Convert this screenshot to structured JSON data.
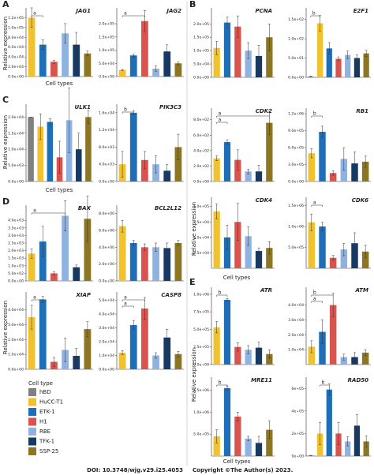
{
  "chart_data": [
    {
      "type": "bar",
      "title": "JAG1",
      "values": [
        null,
        120000,
        65000,
        30000,
        88000,
        65000,
        47000
      ],
      "errors": [
        null,
        20000,
        10000,
        3000,
        20000,
        25000,
        5000
      ],
      "ylim": [
        0,
        140000
      ],
      "yticks": [
        {
          "value": 0,
          "label": "0.0e+00"
        },
        {
          "value": 20000,
          "label": "2.0e+04"
        },
        {
          "value": 40000,
          "label": "4.0e+04"
        },
        {
          "value": 60000,
          "label": "6.0e+04"
        },
        {
          "value": 80000,
          "label": "8.0e+04"
        },
        {
          "value": 100000,
          "label": "1.0e+05"
        },
        {
          "value": 120000,
          "label": "1.2e+05"
        }
      ],
      "brackets": [
        {
          "label": "a",
          "between": [
            1,
            2
          ]
        }
      ]
    },
    {
      "type": "bar",
      "title": "JAG2",
      "values": [
        null,
        25000,
        80000,
        210000,
        30000,
        95000,
        50000
      ],
      "errors": [
        null,
        2000,
        5000,
        40000,
        10000,
        25000,
        5000
      ],
      "ylim": [
        0,
        260000
      ],
      "yticks": [
        {
          "value": 0,
          "label": "0.0e+00"
        },
        {
          "value": 50000,
          "label": "5.0e+04"
        },
        {
          "value": 100000,
          "label": "1.0e+05"
        },
        {
          "value": 150000,
          "label": "1.5e+05"
        },
        {
          "value": 200000,
          "label": "2.0e+05"
        }
      ],
      "brackets": [
        {
          "label": "a",
          "between": [
            1,
            3
          ]
        }
      ]
    },
    {
      "type": "bar",
      "title": "PCNA",
      "values": [
        null,
        110000,
        205000,
        190000,
        100000,
        80000,
        150000
      ],
      "errors": [
        null,
        25000,
        20000,
        40000,
        30000,
        40000,
        50000
      ],
      "ylim": [
        0,
        260000
      ],
      "yticks": [
        {
          "value": 0,
          "label": "0.0e+00"
        },
        {
          "value": 50000,
          "label": "5.0e+04"
        },
        {
          "value": 100000,
          "label": "1.0e+05"
        },
        {
          "value": 150000,
          "label": "1.5e+05"
        },
        {
          "value": 200000,
          "label": "2.0e+05"
        }
      ],
      "brackets": []
    },
    {
      "type": "bar",
      "title": "E2F1",
      "values": [
        2,
        140,
        75,
        48,
        58,
        50,
        62
      ],
      "errors": [
        1,
        20,
        15,
        5,
        10,
        8,
        8
      ],
      "ylim": [
        0,
        180
      ],
      "yticks": [
        {
          "value": 0,
          "label": "0.0e+00"
        },
        {
          "value": 50,
          "label": "5.0e+01"
        },
        {
          "value": 100,
          "label": "1.0e+02"
        },
        {
          "value": 150,
          "label": "1.5e+02"
        }
      ],
      "brackets": [
        {
          "label": "b",
          "between": [
            0,
            1
          ]
        }
      ]
    },
    {
      "type": "bar",
      "title": "ULK1",
      "values": [
        20000,
        17000,
        18500,
        7500,
        19000,
        10000,
        20000
      ],
      "errors": [
        0,
        4000,
        1000,
        5000,
        10000,
        5000,
        2000
      ],
      "ylim": [
        0,
        24000
      ],
      "yticks": [
        {
          "value": 0,
          "label": "0.0e+00"
        },
        {
          "value": 5000,
          "label": "5.0e+03"
        },
        {
          "value": 10000,
          "label": "1.0e+04"
        },
        {
          "value": 15000,
          "label": "1.5e+04"
        },
        {
          "value": 20000,
          "label": "2.0e+04"
        }
      ],
      "brackets": []
    },
    {
      "type": "bar",
      "title": "PIK3C3",
      "values": [
        null,
        4000,
        16000,
        5000,
        4000,
        2500,
        8000
      ],
      "errors": [
        null,
        3000,
        500,
        2000,
        2000,
        1500,
        3000
      ],
      "ylim": [
        0,
        18000
      ],
      "yticks": [
        {
          "value": 0,
          "label": "0.0e+00"
        },
        {
          "value": 4000,
          "label": "4.0e+03"
        },
        {
          "value": 8000,
          "label": "8.0e+03"
        },
        {
          "value": 12000,
          "label": "1.2e+04"
        },
        {
          "value": 16000,
          "label": "1.6e+04"
        }
      ],
      "brackets": [
        {
          "label": "b",
          "between": [
            1,
            2
          ]
        }
      ]
    },
    {
      "type": "bar",
      "title": "CDK2",
      "values": [
        null,
        300,
        510,
        280,
        130,
        130,
        760
      ],
      "errors": [
        null,
        30,
        30,
        130,
        30,
        80,
        150
      ],
      "ylim": [
        0,
        950
      ],
      "yticks": [
        {
          "value": 0,
          "label": "0.0e+00"
        },
        {
          "value": 200,
          "label": "2.0e+02"
        },
        {
          "value": 400,
          "label": "4.0e+02"
        },
        {
          "value": 600,
          "label": "6.0e+02"
        },
        {
          "value": 800,
          "label": "8.0e+02"
        }
      ],
      "brackets": [
        {
          "label": "a",
          "between": [
            1,
            2
          ]
        },
        {
          "label": "a",
          "between": [
            1,
            6
          ]
        }
      ]
    },
    {
      "type": "bar",
      "title": "RB1",
      "values": [
        null,
        500000,
        880000,
        150000,
        400000,
        320000,
        350000
      ],
      "errors": [
        null,
        80000,
        100000,
        40000,
        200000,
        200000,
        100000
      ],
      "ylim": [
        0,
        1300000
      ],
      "yticks": [
        {
          "value": 0,
          "label": "0.0e+00"
        },
        {
          "value": 300000,
          "label": "3.0e+05"
        },
        {
          "value": 600000,
          "label": "6.0e+05"
        },
        {
          "value": 900000,
          "label": "9.0e+05"
        },
        {
          "value": 1200000,
          "label": "1.2e+06"
        }
      ],
      "brackets": [
        {
          "label": "b",
          "between": [
            1,
            2
          ]
        }
      ]
    },
    {
      "type": "bar",
      "title": "CDK4",
      "values": [
        null,
        92000,
        50000,
        75000,
        52000,
        28000,
        33000
      ],
      "errors": [
        null,
        12000,
        20000,
        30000,
        15000,
        5000,
        10000
      ],
      "ylim": [
        0,
        115000
      ],
      "yticks": [
        {
          "value": 25000,
          "label": "2.5e+04"
        },
        {
          "value": 50000,
          "label": "5.0e+04"
        },
        {
          "value": 75000,
          "label": "7.5e+04"
        },
        {
          "value": 100000,
          "label": "1.0e+05"
        }
      ],
      "brackets": []
    },
    {
      "type": "bar",
      "title": "CDK6",
      "values": [
        null,
        1100000,
        1000000,
        250000,
        450000,
        600000,
        400000
      ],
      "errors": [
        null,
        200000,
        100000,
        60000,
        150000,
        250000,
        150000
      ],
      "ylim": [
        0,
        1700000
      ],
      "yticks": [
        {
          "value": 500000,
          "label": "5.0e+05"
        },
        {
          "value": 1000000,
          "label": "1.0e+06"
        },
        {
          "value": 1500000,
          "label": "1.5e+06"
        }
      ],
      "brackets": [
        {
          "label": "a",
          "between": [
            1,
            2
          ]
        }
      ]
    },
    {
      "type": "bar",
      "title": "BAX",
      "values": [
        null,
        1800,
        2600,
        500,
        4300,
        900,
        4100
      ],
      "errors": [
        null,
        300,
        1000,
        100,
        1000,
        150,
        1500
      ],
      "ylim": [
        0,
        5000
      ],
      "yticks": [
        {
          "value": 0,
          "label": "0.0e+00"
        },
        {
          "value": 500,
          "label": "5.0e+02"
        },
        {
          "value": 1000,
          "label": "1.0e+03"
        },
        {
          "value": 1500,
          "label": "1.5e+03"
        },
        {
          "value": 2000,
          "label": "2.0e+03"
        },
        {
          "value": 2500,
          "label": "2.5e+03"
        },
        {
          "value": 3000,
          "label": "3.0e+03"
        },
        {
          "value": 3500,
          "label": "3.5e+03"
        },
        {
          "value": 4000,
          "label": "4.0e+03"
        }
      ],
      "brackets": [
        {
          "label": "a",
          "between": [
            1,
            4
          ]
        }
      ]
    },
    {
      "type": "bar",
      "title": "BCL2L12",
      "values": [
        null,
        6.5,
        4.5,
        4,
        4,
        3.9,
        4.5
      ],
      "errors": [
        null,
        0.7,
        0.3,
        0.4,
        0.5,
        0.6,
        0.3
      ],
      "ylim": [
        0,
        9
      ],
      "yticks": [
        {
          "value": 0,
          "label": "0.0e+00"
        },
        {
          "value": 2,
          "label": "2.0e+00"
        },
        {
          "value": 4,
          "label": "4.0e+00"
        },
        {
          "value": 6,
          "label": "6.0e+00"
        },
        {
          "value": 8,
          "label": "8.0e+00"
        }
      ],
      "brackets": []
    },
    {
      "type": "bar",
      "title": "XIAP",
      "values": [
        null,
        35000,
        47000,
        5000,
        13000,
        9000,
        27000
      ],
      "errors": [
        null,
        8000,
        2000,
        3000,
        8000,
        5000,
        5000
      ],
      "ylim": [
        0,
        52000
      ],
      "yticks": [
        {
          "value": 0,
          "label": "0.0e+00"
        },
        {
          "value": 10000,
          "label": "1.0e+04"
        },
        {
          "value": 20000,
          "label": "2.0e+04"
        },
        {
          "value": 30000,
          "label": "3.0e+04"
        },
        {
          "value": 40000,
          "label": "4.0e+04"
        }
      ],
      "brackets": [
        {
          "label": "a",
          "between": [
            1,
            2
          ]
        }
      ]
    },
    {
      "type": "bar",
      "title": "CASP8",
      "values": [
        null,
        12000,
        32000,
        44000,
        10000,
        23000,
        11000
      ],
      "errors": [
        null,
        1500,
        3000,
        8000,
        2000,
        6000,
        2000
      ],
      "ylim": [
        0,
        56000
      ],
      "yticks": [
        {
          "value": 0,
          "label": "0.0e+00"
        },
        {
          "value": 10000,
          "label": "1.0e+04"
        },
        {
          "value": 20000,
          "label": "2.0e+04"
        },
        {
          "value": 30000,
          "label": "3.0e+04"
        },
        {
          "value": 40000,
          "label": "4.0e+04"
        },
        {
          "value": 50000,
          "label": "5.0e+04"
        }
      ],
      "brackets": [
        {
          "label": "a",
          "between": [
            1,
            2
          ]
        },
        {
          "label": "a",
          "between": [
            1,
            3
          ]
        }
      ]
    },
    {
      "type": "bar",
      "title": "ATR",
      "values": [
        null,
        530000,
        920000,
        250000,
        210000,
        240000,
        150000
      ],
      "errors": [
        null,
        80000,
        20000,
        60000,
        60000,
        80000,
        60000
      ],
      "ylim": [
        0,
        1100000
      ],
      "yticks": [
        {
          "value": 0,
          "label": "0.0e+00"
        },
        {
          "value": 250000,
          "label": "2.5e+05"
        },
        {
          "value": 500000,
          "label": "5.0e+05"
        },
        {
          "value": 750000,
          "label": "7.5e+05"
        },
        {
          "value": 1000000,
          "label": "1.0e+06"
        }
      ],
      "brackets": [
        {
          "label": "b",
          "between": [
            1,
            2
          ]
        }
      ]
    },
    {
      "type": "bar",
      "title": "ATM",
      "values": [
        null,
        12000,
        22000,
        40000,
        5000,
        5000,
        8000
      ],
      "errors": [
        null,
        4000,
        8000,
        8000,
        2000,
        3000,
        2000
      ],
      "ylim": [
        0,
        52000
      ],
      "yticks": [
        {
          "value": 10000,
          "label": "1.0e+04"
        },
        {
          "value": 20000,
          "label": "2.0e+04"
        },
        {
          "value": 30000,
          "label": "3.0e+04"
        },
        {
          "value": 40000,
          "label": "4.0e+04"
        }
      ],
      "brackets": [
        {
          "label": "a",
          "between": [
            1,
            2
          ]
        },
        {
          "label": "b",
          "between": [
            1,
            3
          ]
        }
      ]
    },
    {
      "type": "bar",
      "title": "MRE11",
      "values": [
        null,
        450000,
        1550000,
        900000,
        400000,
        300000,
        600000
      ],
      "errors": [
        null,
        150000,
        50000,
        100000,
        50000,
        150000,
        200000
      ],
      "ylim": [
        0,
        1800000
      ],
      "yticks": [
        {
          "value": 500000,
          "label": "5.0e+05"
        },
        {
          "value": 1000000,
          "label": "1.0e+06"
        },
        {
          "value": 1500000,
          "label": "1.5e+06"
        }
      ],
      "brackets": [
        {
          "label": "b",
          "between": [
            1,
            2
          ]
        }
      ]
    },
    {
      "type": "bar",
      "title": "RAD50",
      "values": [
        5000,
        200000,
        590000,
        200000,
        130000,
        270000,
        130000
      ],
      "errors": [
        2000,
        100000,
        50000,
        100000,
        40000,
        100000,
        50000
      ],
      "ylim": [
        0,
        700000
      ],
      "yticks": [
        {
          "value": 0,
          "label": "0e+00"
        },
        {
          "value": 200000,
          "label": "2e+05"
        },
        {
          "value": 400000,
          "label": "4e+05"
        },
        {
          "value": 600000,
          "label": "6e+05"
        }
      ],
      "brackets": [
        {
          "label": "b",
          "between": [
            1,
            2
          ]
        }
      ]
    }
  ],
  "sections": [
    {
      "label": "A",
      "x_label": "Cell types",
      "y_label": "Relative expression"
    },
    {
      "label": "C",
      "x_label": "Cell types",
      "y_label": "Relative expression"
    },
    {
      "label": "D",
      "y_label": "Relative expression"
    },
    {
      "label": "B",
      "x_label": "Cell types",
      "y_label": "Relative expression"
    },
    {
      "label": "E",
      "x_label": "Cell types",
      "y_label": "Relative expression"
    }
  ],
  "legend": {
    "title": "Cell type",
    "items": [
      {
        "name": "hBD",
        "color": "#808080"
      },
      {
        "name": "HuCC-T1",
        "color": "#f2c12e"
      },
      {
        "name": "ETK-1",
        "color": "#1f6fb8"
      },
      {
        "name": "H1",
        "color": "#d9534f"
      },
      {
        "name": "RBE",
        "color": "#8fb2e0"
      },
      {
        "name": "TFK-1",
        "color": "#163a63"
      },
      {
        "name": "SSP-25",
        "color": "#8c7622"
      }
    ]
  },
  "footer": {
    "doi": "DOI: 10.3748/wjg.v29.i25.4053",
    "copyright": "Copyright ©The Author(s) 2023."
  }
}
